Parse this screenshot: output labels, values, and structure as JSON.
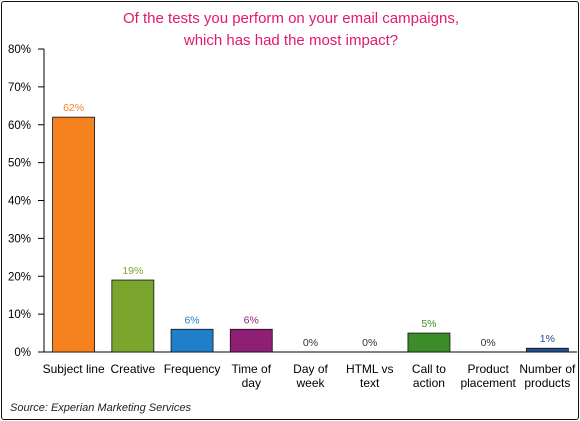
{
  "chart_data": {
    "type": "bar",
    "title_lines": [
      "Of the tests you perform on your email campaigns,",
      "which has had the most impact?"
    ],
    "categories": [
      [
        "Subject line"
      ],
      [
        "Creative"
      ],
      [
        "Frequency"
      ],
      [
        "Time of",
        "day"
      ],
      [
        "Day of",
        "week"
      ],
      [
        "HTML vs",
        "text"
      ],
      [
        "Call to",
        "action"
      ],
      [
        "Product",
        "placement"
      ],
      [
        "Number of",
        "products"
      ]
    ],
    "values": [
      62,
      19,
      6,
      6,
      0,
      0,
      5,
      0,
      1
    ],
    "value_labels": [
      "62%",
      "19%",
      "6%",
      "6%",
      "0%",
      "0%",
      "5%",
      "0%",
      "1%"
    ],
    "bar_colors": [
      "#f5821f",
      "#7aa62e",
      "#1f7fc8",
      "#8e1f74",
      "#888888",
      "#888888",
      "#3d8c2a",
      "#888888",
      "#1f4f8e"
    ],
    "label_colors": [
      "#f5821f",
      "#7aa62e",
      "#1f7fc8",
      "#8e1f74",
      "#333333",
      "#333333",
      "#3d8c2a",
      "#333333",
      "#1f4f8e"
    ],
    "y_ticks": [
      "0%",
      "10%",
      "20%",
      "30%",
      "40%",
      "50%",
      "60%",
      "70%",
      "80%"
    ],
    "ylim": [
      0,
      80
    ],
    "grid": false
  },
  "source": "Source: Experian Marketing Services"
}
